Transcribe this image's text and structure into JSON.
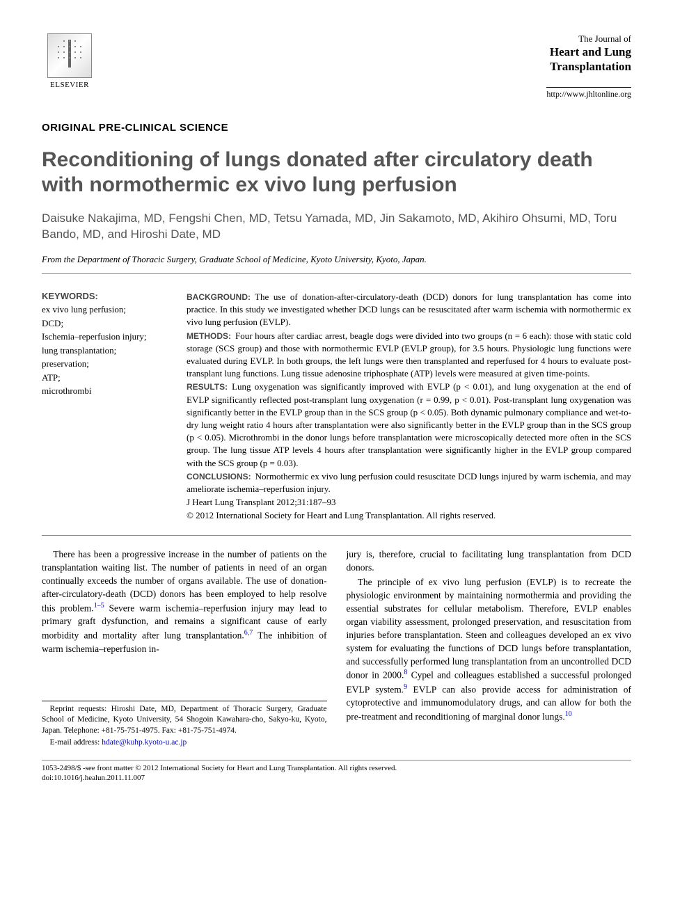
{
  "publisher": {
    "name": "ELSEVIER"
  },
  "journal": {
    "intro": "The Journal of",
    "name_line1": "Heart and Lung",
    "name_line2": "Transplantation",
    "url": "http://www.jhltonline.org"
  },
  "article_type": "ORIGINAL PRE-CLINICAL SCIENCE",
  "title": "Reconditioning of lungs donated after circulatory death with normothermic ex vivo lung perfusion",
  "authors": "Daisuke Nakajima, MD, Fengshi Chen, MD, Tetsu Yamada, MD, Jin Sakamoto, MD, Akihiro Ohsumi, MD, Toru Bando, MD, and Hiroshi Date, MD",
  "affiliation": "From the Department of Thoracic Surgery, Graduate School of Medicine, Kyoto University, Kyoto, Japan.",
  "keywords": {
    "heading": "KEYWORDS:",
    "items": "ex vivo lung perfusion;\nDCD;\nIschemia–reperfusion injury;\nlung transplantation;\npreservation;\nATP;\nmicrothrombi"
  },
  "abstract": {
    "background": {
      "label": "BACKGROUND:",
      "text": "The use of donation-after-circulatory-death (DCD) donors for lung transplantation has come into practice. In this study we investigated whether DCD lungs can be resuscitated after warm ischemia with normothermic ex vivo lung perfusion (EVLP)."
    },
    "methods": {
      "label": "METHODS:",
      "text": "Four hours after cardiac arrest, beagle dogs were divided into two groups (n = 6 each): those with static cold storage (SCS group) and those with normothermic EVLP (EVLP group), for 3.5 hours. Physiologic lung functions were evaluated during EVLP. In both groups, the left lungs were then transplanted and reperfused for 4 hours to evaluate post-transplant lung functions. Lung tissue adenosine triphosphate (ATP) levels were measured at given time-points."
    },
    "results": {
      "label": "RESULTS:",
      "text": "Lung oxygenation was significantly improved with EVLP (p < 0.01), and lung oxygenation at the end of EVLP significantly reflected post-transplant lung oxygenation (r = 0.99, p < 0.01). Post-transplant lung oxygenation was significantly better in the EVLP group than in the SCS group (p < 0.05). Both dynamic pulmonary compliance and wet-to-dry lung weight ratio 4 hours after transplantation were also significantly better in the EVLP group than in the SCS group (p < 0.05). Microthrombi in the donor lungs before transplantation were microscopically detected more often in the SCS group. The lung tissue ATP levels 4 hours after transplantation were significantly higher in the EVLP group compared with the SCS group (p = 0.03)."
    },
    "conclusions": {
      "label": "CONCLUSIONS:",
      "text": "Normothermic ex vivo lung perfusion could resuscitate DCD lungs injured by warm ischemia, and may ameliorate ischemia–reperfusion injury."
    },
    "citation": "J Heart Lung Transplant 2012;31:187–93",
    "copyright": "© 2012 International Society for Heart and Lung Transplantation. All rights reserved."
  },
  "body": {
    "p1a": "There has been a progressive increase in the number of patients on the transplantation waiting list. The number of patients in need of an organ continually exceeds the number of organs available. The use of donation-after-circulatory-death (DCD) donors has been employed to help resolve this problem.",
    "p1_ref1": "1–5",
    "p1b": " Severe warm ischemia–reperfusion injury may lead to primary graft dysfunction, and remains a significant cause of early morbidity and mortality after lung transplantation.",
    "p1_ref2": "6,7",
    "p1c": " The inhibition of warm ischemia–reperfusion in-",
    "p2a": "jury is, therefore, crucial to facilitating lung transplantation from DCD donors.",
    "p3a": "The principle of ex vivo lung perfusion (EVLP) is to recreate the physiologic environment by maintaining normothermia and providing the essential substrates for cellular metabolism. Therefore, EVLP enables organ viability assessment, prolonged preservation, and resuscitation from injuries before transplantation. Steen and colleagues developed an ex vivo system for evaluating the functions of DCD lungs before transplantation, and successfully performed lung transplantation from an uncontrolled DCD donor in 2000.",
    "p3_ref1": "8",
    "p3b": " Cypel and colleagues established a successful prolonged EVLP system.",
    "p3_ref2": "9",
    "p3c": " EVLP can also provide access for administration of cytoprotective and immunomodulatory drugs, and can allow for both the pre-treatment and reconditioning of marginal donor lungs.",
    "p3_ref3": "10"
  },
  "footnote": {
    "reprint": "Reprint requests: Hiroshi Date, MD, Department of Thoracic Surgery, Graduate School of Medicine, Kyoto University, 54 Shogoin Kawahara-cho, Sakyo-ku, Kyoto, Japan. Telephone: +81-75-751-4975. Fax: +81-75-751-4974.",
    "email_label": "E-mail address: ",
    "email": "hdate@kuhp.kyoto-u.ac.jp"
  },
  "footer": {
    "line1": "1053-2498/$ -see front matter © 2012 International Society for Heart and Lung Transplantation. All rights reserved.",
    "line2": "doi:10.1016/j.healun.2011.11.007"
  }
}
